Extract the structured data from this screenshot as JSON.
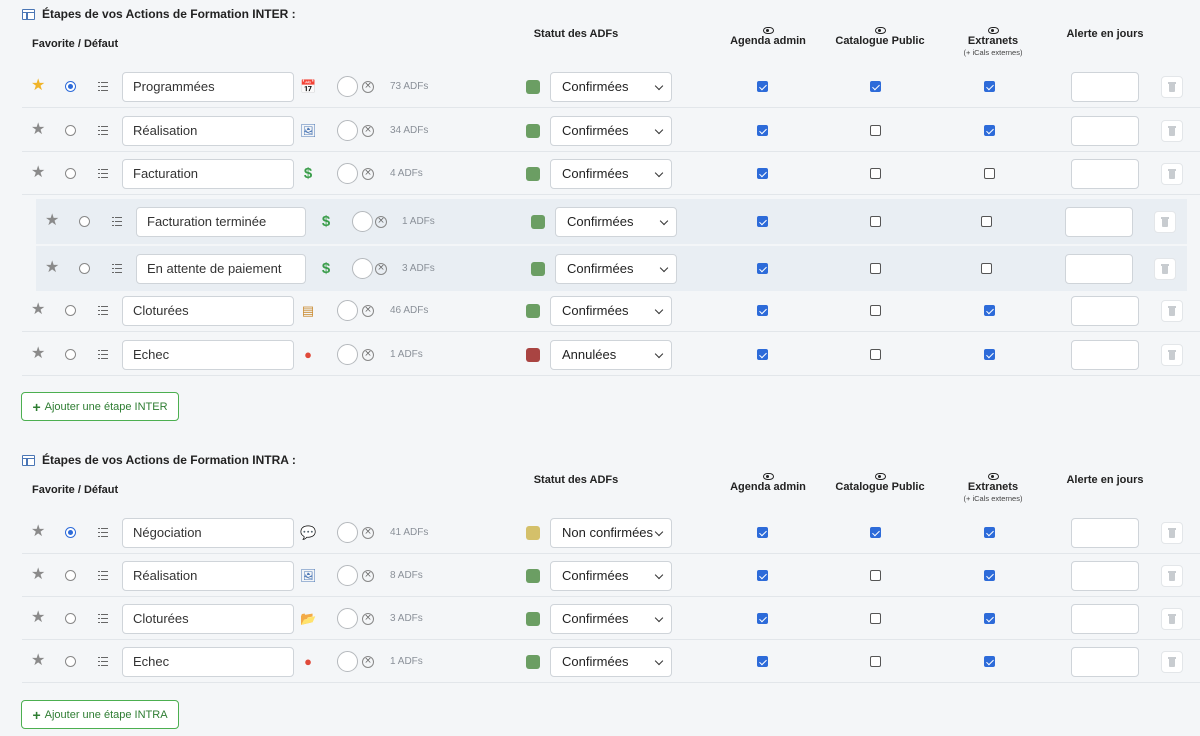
{
  "sections": [
    {
      "title": "Étapes de vos Actions de Formation INTER :",
      "headers": {
        "favorite": "Favorite / Défaut",
        "status": "Statut des ADFs",
        "agenda": "Agenda admin",
        "catalogue": "Catalogue Public",
        "extranets": "Extranets",
        "extranets_note": "(+ iCals externes)",
        "alert": "Alerte en jours"
      },
      "rows": [
        {
          "name": "Programmées",
          "icon": "calendar-icon",
          "count": "73 ADFs",
          "status": "Confirmées",
          "status_color": "#6b9e63",
          "agenda": true,
          "catalogue": true,
          "extranet": true,
          "favorite": true,
          "default": true,
          "sub": false
        },
        {
          "name": "Réalisation",
          "icon": "picture-icon",
          "count": "34 ADFs",
          "status": "Confirmées",
          "status_color": "#6b9e63",
          "agenda": true,
          "catalogue": false,
          "extranet": true,
          "favorite": false,
          "default": false,
          "sub": false
        },
        {
          "name": "Facturation",
          "icon": "dollar-icon",
          "count": "4 ADFs",
          "status": "Confirmées",
          "status_color": "#6b9e63",
          "agenda": true,
          "catalogue": false,
          "extranet": false,
          "favorite": false,
          "default": false,
          "sub": false
        },
        {
          "name": "Facturation terminée",
          "icon": "dollar-icon",
          "count": "1 ADFs",
          "status": "Confirmées",
          "status_color": "#6b9e63",
          "agenda": true,
          "catalogue": false,
          "extranet": false,
          "favorite": false,
          "default": false,
          "sub": true
        },
        {
          "name": "En attente de paiement",
          "icon": "dollar-icon",
          "count": "3 ADFs",
          "status": "Confirmées",
          "status_color": "#6b9e63",
          "agenda": true,
          "catalogue": false,
          "extranet": false,
          "favorite": false,
          "default": false,
          "sub": true
        },
        {
          "name": "Cloturées",
          "icon": "box-icon",
          "count": "46 ADFs",
          "status": "Confirmées",
          "status_color": "#6b9e63",
          "agenda": true,
          "catalogue": false,
          "extranet": true,
          "favorite": false,
          "default": false,
          "sub": false
        },
        {
          "name": "Echec",
          "icon": "red-circle-icon",
          "count": "1 ADFs",
          "status": "Annulées",
          "status_color": "#a94442",
          "agenda": true,
          "catalogue": false,
          "extranet": true,
          "favorite": false,
          "default": false,
          "sub": false
        }
      ],
      "add_label": "Ajouter une étape INTER"
    },
    {
      "title": "Étapes de vos Actions de Formation INTRA :",
      "headers": {
        "favorite": "Favorite / Défaut",
        "status": "Statut des ADFs",
        "agenda": "Agenda admin",
        "catalogue": "Catalogue Public",
        "extranets": "Extranets",
        "extranets_note": "(+ iCals externes)",
        "alert": "Alerte en jours"
      },
      "rows": [
        {
          "name": "Négociation",
          "icon": "speech-bubble-icon",
          "count": "41 ADFs",
          "status": "Non confirmées",
          "status_color": "#d4c06a",
          "agenda": true,
          "catalogue": true,
          "extranet": true,
          "favorite": false,
          "default": true,
          "sub": false
        },
        {
          "name": "Réalisation",
          "icon": "picture-icon",
          "count": "8 ADFs",
          "status": "Confirmées",
          "status_color": "#6b9e63",
          "agenda": true,
          "catalogue": false,
          "extranet": true,
          "favorite": false,
          "default": false,
          "sub": false
        },
        {
          "name": "Cloturées",
          "icon": "folder-icon",
          "count": "3 ADFs",
          "status": "Confirmées",
          "status_color": "#6b9e63",
          "agenda": true,
          "catalogue": false,
          "extranet": true,
          "favorite": false,
          "default": false,
          "sub": false
        },
        {
          "name": "Echec",
          "icon": "red-circle-icon",
          "count": "1 ADFs",
          "status": "Confirmées",
          "status_color": "#6b9e63",
          "agenda": true,
          "catalogue": false,
          "extranet": true,
          "favorite": false,
          "default": false,
          "sub": false
        }
      ],
      "add_label": "Ajouter une étape INTRA"
    }
  ]
}
